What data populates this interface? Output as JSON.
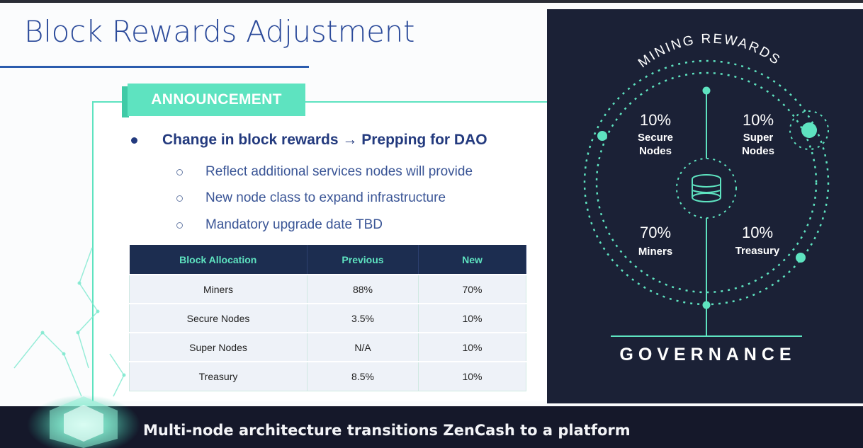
{
  "slide": {
    "title": "Block Rewards Adjustment",
    "announcement_label": "ANNOUNCEMENT",
    "main_bullet": "Change in block rewards → Prepping for DAO",
    "sub_bullets": [
      "Reflect additional services nodes will provide",
      "New node class to expand infrastructure",
      "Mandatory upgrade date TBD"
    ],
    "table": {
      "headers": [
        "Block Allocation",
        "Previous",
        "New"
      ],
      "rows": [
        [
          "Miners",
          "88%",
          "70%"
        ],
        [
          "Secure Nodes",
          "3.5%",
          "10%"
        ],
        [
          "Super Nodes",
          "N/A",
          "10%"
        ],
        [
          "Treasury",
          "8.5%",
          "10%"
        ]
      ]
    }
  },
  "graphic": {
    "arc_title": "MINING REWARDS",
    "secure": {
      "pct": "10%",
      "line1": "Secure",
      "line2": "Nodes"
    },
    "super": {
      "pct": "10%",
      "line1": "Super",
      "line2": "Nodes"
    },
    "miners": {
      "pct": "70%",
      "line1": "Miners"
    },
    "treasury": {
      "pct": "10%",
      "line1": "Treasury"
    },
    "footer": "GOVERNANCE",
    "accent": "#5ee3c0",
    "panel_color": "#1b2136"
  },
  "caption": "Multi-node architecture transitions ZenCash to a platform"
}
